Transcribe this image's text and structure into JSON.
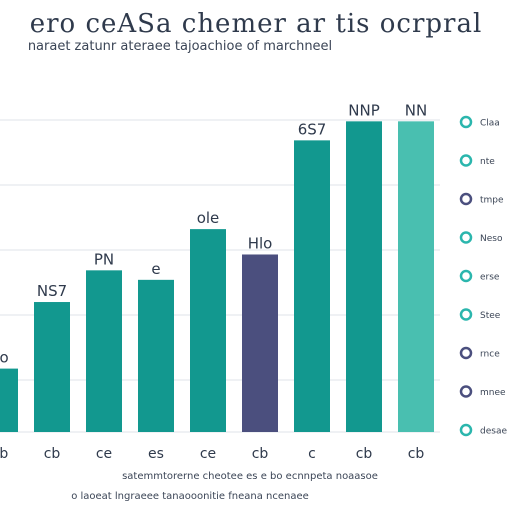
{
  "chart_data": {
    "type": "bar",
    "title": "ero ceASa chemer ar tis ocrpral",
    "subtitle": "naraet zatunr ateraee tajoachioe of marchneel",
    "categories": [
      "cb",
      "cb",
      "ce",
      "es",
      "ce",
      "cb",
      "c",
      "cb",
      "cb"
    ],
    "values": [
      20,
      41,
      51,
      48,
      64,
      56,
      92,
      98,
      98
    ],
    "value_labels": [
      "co",
      "NS7",
      "PN",
      "e",
      "ole",
      "Hlo",
      "6S7",
      "NNP",
      "NN"
    ],
    "bar_colors": [
      "#12988f",
      "#12988f",
      "#12988f",
      "#12988f",
      "#12988f",
      "#4b4f7e",
      "#12988f",
      "#12988f",
      "#49bfb0"
    ],
    "ylim": [
      0,
      100
    ],
    "grid": true,
    "legend_position": "right",
    "legend": [
      {
        "label": "Claa",
        "color": "#2bb6ad"
      },
      {
        "label": "nte",
        "color": "#2bb6ad"
      },
      {
        "label": "tmpe",
        "color": "#4b4f7e"
      },
      {
        "label": "Neso",
        "color": "#2bb6ad"
      },
      {
        "label": "erse",
        "color": "#2bb6ad"
      },
      {
        "label": "Stee",
        "color": "#2bb6ad"
      },
      {
        "label": "rnce",
        "color": "#4b4f7e"
      },
      {
        "label": "mnee",
        "color": "#4b4f7e"
      },
      {
        "label": "desae",
        "color": "#2bb6ad"
      }
    ],
    "footer": "satemmtorerne cheotee es e bo ecnnpeta noaasoe",
    "footer2": "o laoeat lngraeee tanaooonitie fneana ncenaee"
  }
}
